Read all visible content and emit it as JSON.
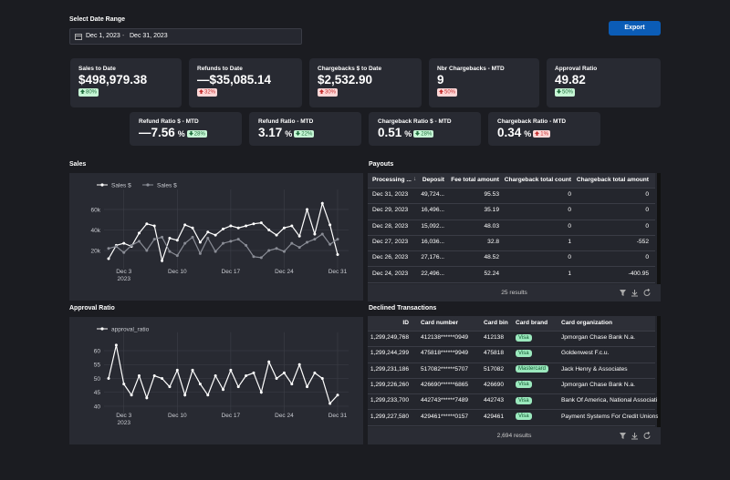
{
  "header": {
    "date_label": "Select Date Range",
    "date_start": "Dec 1, 2023",
    "date_end": "Dec 31, 2023",
    "export_button": "Export"
  },
  "kpis_top": [
    {
      "label": "Sales to Date",
      "value": "$498,979.38",
      "change": "80%",
      "trend": "up",
      "tone": "good"
    },
    {
      "label": "Refunds to Date",
      "value": "—$35,085.14",
      "change": "32%",
      "trend": "up",
      "tone": "bad"
    },
    {
      "label": "Chargebacks $ to Date",
      "value": "$2,532.90",
      "change": "30%",
      "trend": "up",
      "tone": "bad"
    },
    {
      "label": "Nbr Chargebacks - MTD",
      "value": "9",
      "change": "50%",
      "trend": "up",
      "tone": "bad"
    },
    {
      "label": "Approval Ratio",
      "value": "49.82",
      "change": "50%",
      "trend": "down",
      "tone": "good"
    }
  ],
  "kpis_bottom": [
    {
      "label": "Refund Ratio $ - MTD",
      "value": "—7.56",
      "unit": "%",
      "change": "28%",
      "trend": "down",
      "tone": "good"
    },
    {
      "label": "Refund Ratio - MTD",
      "value": "3.17",
      "unit": "%",
      "change": "22%",
      "trend": "down",
      "tone": "good"
    },
    {
      "label": "Chargeback Ratio $ - MTD",
      "value": "0.51",
      "unit": "%",
      "change": "28%",
      "trend": "down",
      "tone": "good"
    },
    {
      "label": "Chargeback Ratio - MTD",
      "value": "0.34",
      "unit": "%",
      "change": "1%",
      "trend": "up",
      "tone": "bad"
    }
  ],
  "sales_chart": {
    "type": "line",
    "title": "Sales",
    "x": [
      "2023-12-01",
      "2023-12-02",
      "2023-12-03",
      "2023-12-04",
      "2023-12-05",
      "2023-12-06",
      "2023-12-07",
      "2023-12-08",
      "2023-12-09",
      "2023-12-10",
      "2023-12-11",
      "2023-12-12",
      "2023-12-13",
      "2023-12-14",
      "2023-12-15",
      "2023-12-16",
      "2023-12-17",
      "2023-12-18",
      "2023-12-19",
      "2023-12-20",
      "2023-12-21",
      "2023-12-22",
      "2023-12-23",
      "2023-12-24",
      "2023-12-25",
      "2023-12-26",
      "2023-12-27",
      "2023-12-28",
      "2023-12-29",
      "2023-12-30",
      "2023-12-31"
    ],
    "series": [
      {
        "name": "Sales $",
        "color": "#ffffff",
        "values": [
          12000,
          25000,
          27000,
          24000,
          37000,
          46000,
          44000,
          10000,
          32000,
          30000,
          45000,
          42000,
          28000,
          38000,
          35000,
          41000,
          44000,
          42000,
          44000,
          46000,
          47000,
          40000,
          35000,
          42000,
          44000,
          34000,
          60000,
          36000,
          66000,
          45000,
          16000
        ]
      },
      {
        "name": "Sales $",
        "color": "#8a8d96",
        "values": [
          22000,
          24000,
          18000,
          25000,
          29000,
          20000,
          31000,
          33000,
          19000,
          15000,
          27000,
          33000,
          17000,
          32000,
          19000,
          27000,
          29000,
          31000,
          25000,
          14000,
          13000,
          20000,
          22000,
          19000,
          27000,
          23000,
          28000,
          31000,
          36000,
          26000,
          31000
        ]
      }
    ],
    "xlim": [
      "2023-12-01",
      "2023-12-31"
    ],
    "xticks": [
      {
        "value": "2023-12-03",
        "label": "Dec 3",
        "sublabel": "2023"
      },
      {
        "value": "2023-12-10",
        "label": "Dec 10"
      },
      {
        "value": "2023-12-17",
        "label": "Dec 17"
      },
      {
        "value": "2023-12-24",
        "label": "Dec 24"
      },
      {
        "value": "2023-12-31",
        "label": "Dec 31"
      }
    ],
    "ylim": [
      5000,
      75000
    ],
    "yticks": [
      {
        "value": 20000,
        "label": "20k"
      },
      {
        "value": 40000,
        "label": "40k"
      },
      {
        "value": 60000,
        "label": "60k"
      }
    ],
    "grid": true
  },
  "approval_chart": {
    "type": "line",
    "title": "Approval Ratio",
    "x": [
      "2023-12-01",
      "2023-12-02",
      "2023-12-03",
      "2023-12-04",
      "2023-12-05",
      "2023-12-06",
      "2023-12-07",
      "2023-12-08",
      "2023-12-09",
      "2023-12-10",
      "2023-12-11",
      "2023-12-12",
      "2023-12-13",
      "2023-12-14",
      "2023-12-15",
      "2023-12-16",
      "2023-12-17",
      "2023-12-18",
      "2023-12-19",
      "2023-12-20",
      "2023-12-21",
      "2023-12-22",
      "2023-12-23",
      "2023-12-24",
      "2023-12-25",
      "2023-12-26",
      "2023-12-27",
      "2023-12-28",
      "2023-12-29",
      "2023-12-30",
      "2023-12-31"
    ],
    "series": [
      {
        "name": "approval_ratio",
        "color": "#ffffff",
        "values": [
          50,
          62,
          48,
          44,
          51,
          43,
          51,
          50,
          47,
          53,
          44,
          53,
          48,
          44,
          51,
          46,
          53,
          47,
          51,
          52,
          45,
          56,
          50,
          52,
          48,
          55,
          47,
          52,
          50,
          41,
          44
        ]
      }
    ],
    "xlim": [
      "2023-12-01",
      "2023-12-31"
    ],
    "xticks": [
      {
        "value": "2023-12-03",
        "label": "Dec 3",
        "sublabel": "2023"
      },
      {
        "value": "2023-12-10",
        "label": "Dec 10"
      },
      {
        "value": "2023-12-17",
        "label": "Dec 17"
      },
      {
        "value": "2023-12-24",
        "label": "Dec 24"
      },
      {
        "value": "2023-12-31",
        "label": "Dec 31"
      }
    ],
    "ylim": [
      37,
      65
    ],
    "yticks": [
      40,
      45,
      50,
      55,
      60
    ],
    "grid": true
  },
  "payouts": {
    "title": "Payouts",
    "columns": [
      "Processing ...",
      "Deposit",
      "Fee total amount",
      "Chargeback total count",
      "Chargeback total amount"
    ],
    "rows": [
      [
        "Dec 31, 2023",
        "49,724...",
        "95.53",
        "0",
        "0"
      ],
      [
        "Dec 29, 2023",
        "16,496...",
        "35.19",
        "0",
        "0"
      ],
      [
        "Dec 28, 2023",
        "15,092...",
        "48.03",
        "0",
        "0"
      ],
      [
        "Dec 27, 2023",
        "16,036...",
        "32.8",
        "1",
        "-552"
      ],
      [
        "Dec 26, 2023",
        "27,176...",
        "48.52",
        "0",
        "0"
      ],
      [
        "Dec 24, 2023",
        "22,496...",
        "52.24",
        "1",
        "-400.95"
      ]
    ],
    "footer": "25 results"
  },
  "declined": {
    "title": "Declined Transactions",
    "columns": [
      "ID",
      "Card number",
      "Card bin",
      "Card brand",
      "Card organization"
    ],
    "rows": [
      [
        "1,299,249,768",
        "412138******0949",
        "412138",
        "Visa",
        "Jpmorgan Chase Bank N.a."
      ],
      [
        "1,299,244,299",
        "475818******9949",
        "475818",
        "Visa",
        "Goldenwest F.c.u."
      ],
      [
        "1,299,231,186",
        "517082******5707",
        "517082",
        "Mastercard",
        "Jack Henry & Associates"
      ],
      [
        "1,299,226,260",
        "426690******6865",
        "426690",
        "Visa",
        "Jpmorgan Chase Bank N.a."
      ],
      [
        "1,299,233,700",
        "442743******7489",
        "442743",
        "Visa",
        "Bank Of America, National Associati"
      ],
      [
        "1,299,227,580",
        "429461******0157",
        "429461",
        "Visa",
        "Payment Systems For Credit Unions"
      ]
    ],
    "footer": "2,694 results"
  }
}
